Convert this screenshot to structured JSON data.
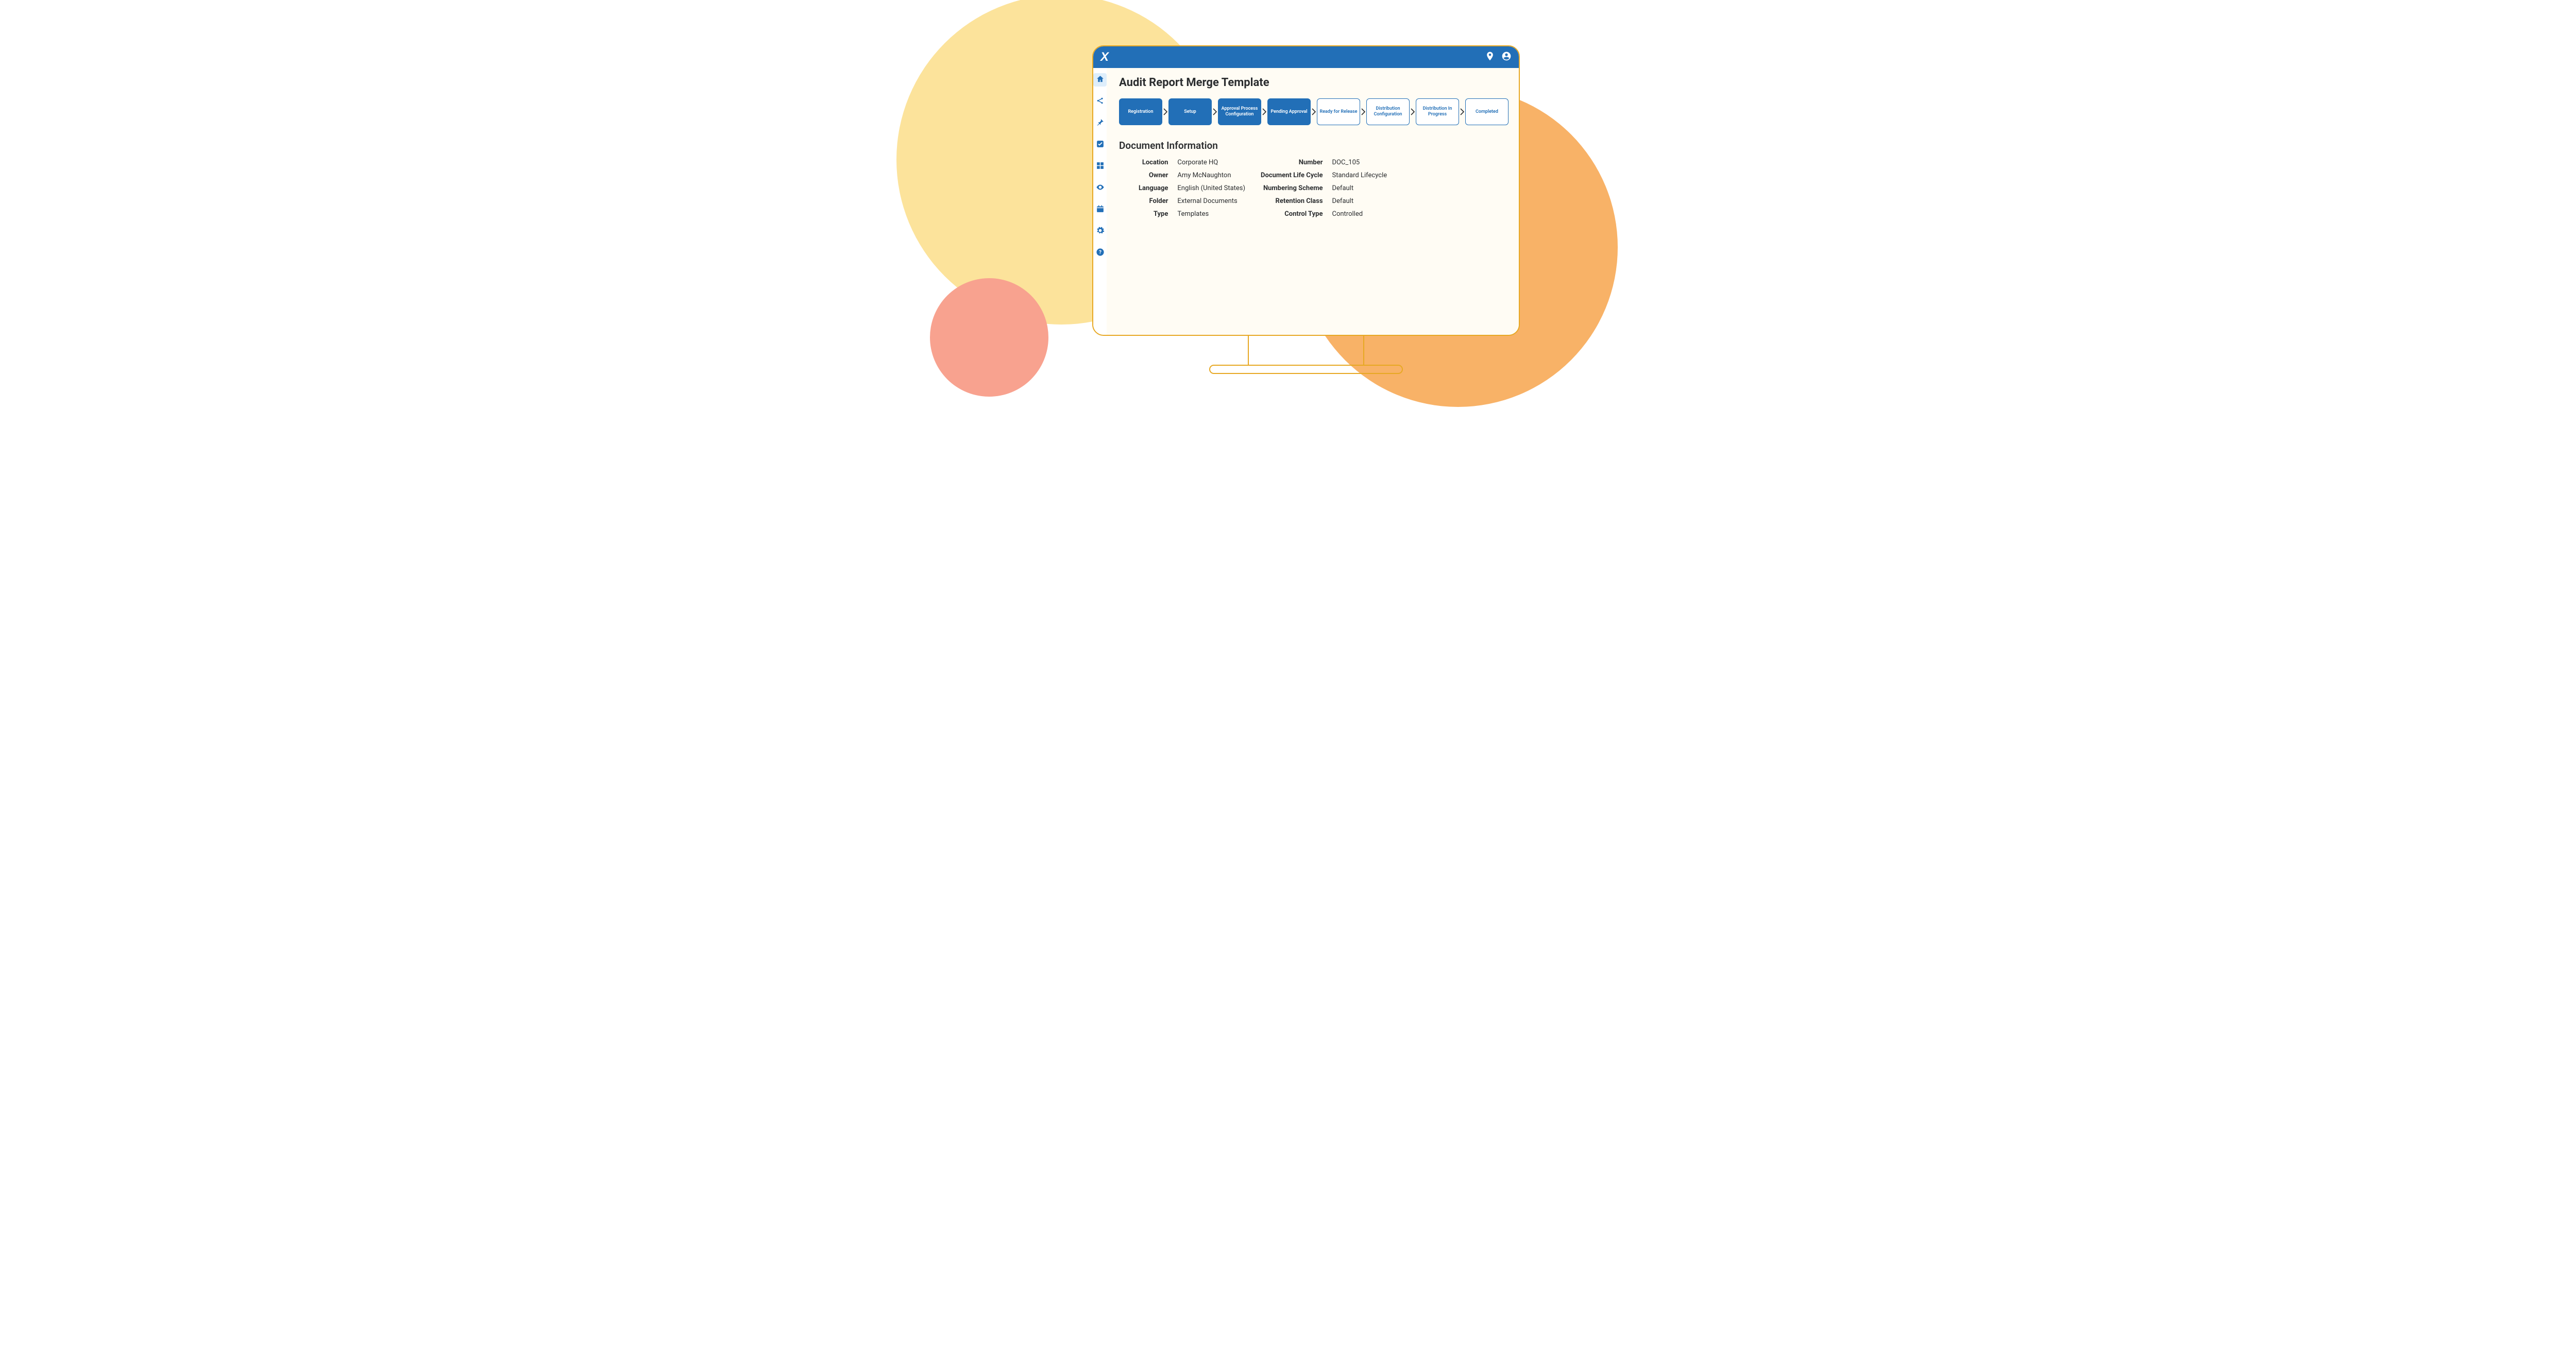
{
  "colors": {
    "yellow": "#fce39b",
    "orange": "#f8b267",
    "coral": "#f8a28f",
    "monitor_stroke": "#e7a823",
    "header_bg": "#226fb7",
    "accent_blue": "#226fb7",
    "sidebar_icon": "#226fb7",
    "sidebar_active_bg": "#deeefb",
    "content_bg": "#fffcf4",
    "text_dark": "#2b2d2f",
    "step_done_bg": "#226fb7",
    "step_done_text": "#ffffff",
    "step_pending_border": "#226fb7",
    "step_pending_text": "#226fb7"
  },
  "header": {
    "brand": "X"
  },
  "sidebar": {
    "items": [
      {
        "name": "home",
        "active": true
      },
      {
        "name": "share",
        "active": false
      },
      {
        "name": "pin",
        "active": false
      },
      {
        "name": "check",
        "active": false
      },
      {
        "name": "apps",
        "active": false
      },
      {
        "name": "eye",
        "active": false
      },
      {
        "name": "calendar",
        "active": false
      },
      {
        "name": "settings",
        "active": false
      },
      {
        "name": "help",
        "active": false
      }
    ]
  },
  "page": {
    "title": "Audit Report Merge Template"
  },
  "workflow": {
    "steps": [
      {
        "label": "Registration",
        "state": "done"
      },
      {
        "label": "Setup",
        "state": "done"
      },
      {
        "label": "Approval Process Configuration",
        "state": "done"
      },
      {
        "label": "Pending Approval",
        "state": "done"
      },
      {
        "label": "Ready for Release",
        "state": "pending"
      },
      {
        "label": "Distribution Configuration",
        "state": "pending"
      },
      {
        "label": "Distribution In Progress",
        "state": "pending"
      },
      {
        "label": "Completed",
        "state": "pending"
      }
    ]
  },
  "document_info": {
    "section_title": "Document Information",
    "left": [
      {
        "k": "Location",
        "v": "Corporate HQ"
      },
      {
        "k": "Owner",
        "v": "Amy McNaughton"
      },
      {
        "k": "Language",
        "v": "English (United States)"
      },
      {
        "k": "Folder",
        "v": "External Documents"
      },
      {
        "k": "Type",
        "v": "Templates"
      }
    ],
    "right": [
      {
        "k": "Number",
        "v": "DOC_105"
      },
      {
        "k": "Document Life Cycle",
        "v": "Standard Lifecycle"
      },
      {
        "k": "Numbering Scheme",
        "v": "Default"
      },
      {
        "k": "Retention Class",
        "v": "Default"
      },
      {
        "k": "Control Type",
        "v": "Controlled"
      }
    ]
  }
}
